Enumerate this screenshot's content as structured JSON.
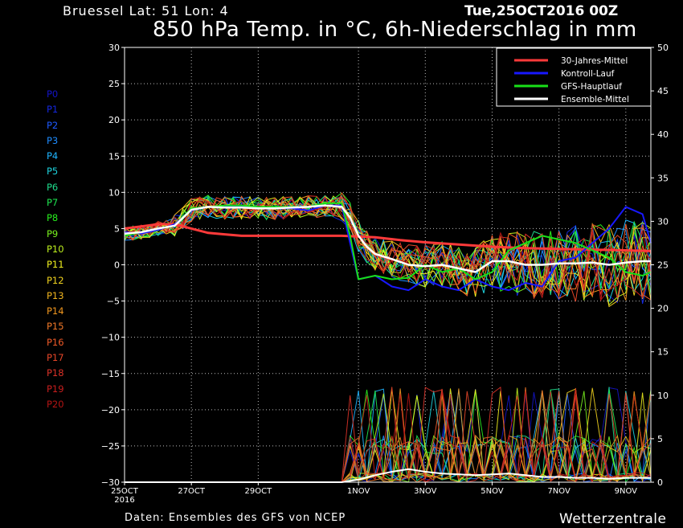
{
  "header": {
    "location": "Bruessel   Lat: 51 Lon: 4",
    "run": "Tue,25OCT2016 00Z",
    "title": "850 hPa Temp. in °C, 6h-Niederschlag in mm"
  },
  "footer": {
    "source": "Daten: Ensembles des GFS von NCEP",
    "credit": "Wetterzentrale"
  },
  "colors": {
    "climate": "#ff3a3a",
    "control": "#1818ff",
    "main": "#18e018",
    "mean": "#ffffff",
    "frame": "#ffffff",
    "grid": "#bbbbbb"
  },
  "legend": [
    {
      "label": "30-Jahres-Mittel",
      "color": "#ff3a3a"
    },
    {
      "label": "Kontroll-Lauf",
      "color": "#1818ff"
    },
    {
      "label": "GFS-Hauptlauf",
      "color": "#18e018"
    },
    {
      "label": "Ensemble-Mittel",
      "color": "#ffffff"
    }
  ],
  "members": [
    {
      "label": "P0",
      "color": "#1414c8"
    },
    {
      "label": "P1",
      "color": "#1428e0"
    },
    {
      "label": "P2",
      "color": "#1e5aff"
    },
    {
      "label": "P3",
      "color": "#1e8cff"
    },
    {
      "label": "P4",
      "color": "#1eb4ff"
    },
    {
      "label": "P5",
      "color": "#1ed2dc"
    },
    {
      "label": "P6",
      "color": "#1edc8c"
    },
    {
      "label": "P7",
      "color": "#1ee650"
    },
    {
      "label": "P8",
      "color": "#28f01e"
    },
    {
      "label": "P9",
      "color": "#78f01e"
    },
    {
      "label": "P10",
      "color": "#bef01e"
    },
    {
      "label": "P11",
      "color": "#f0f01e"
    },
    {
      "label": "P12",
      "color": "#f0d21e"
    },
    {
      "label": "P13",
      "color": "#f0b41e"
    },
    {
      "label": "P14",
      "color": "#f0961e"
    },
    {
      "label": "P15",
      "color": "#f07828"
    },
    {
      "label": "P16",
      "color": "#f05a28"
    },
    {
      "label": "P17",
      "color": "#e64628"
    },
    {
      "label": "P18",
      "color": "#dc3228"
    },
    {
      "label": "P19",
      "color": "#c81e1e"
    },
    {
      "label": "P20",
      "color": "#b41414"
    }
  ],
  "chart_data": {
    "type": "line",
    "title": "850 hPa Temp. in °C, 6h-Niederschlag in mm",
    "x_unit": "forecast step, 6 h (0 = 25OCT 00Z)",
    "xlim": [
      0,
      63
    ],
    "x_ticks": [
      {
        "x": 0,
        "label": "25OCT",
        "sublabel": "2016"
      },
      {
        "x": 8,
        "label": "27OCT",
        "sublabel": ""
      },
      {
        "x": 16,
        "label": "29OCT",
        "sublabel": ""
      },
      {
        "x": 28,
        "label": "1NOV",
        "sublabel": ""
      },
      {
        "x": 36,
        "label": "3NOV",
        "sublabel": ""
      },
      {
        "x": 44,
        "label": "5NOV",
        "sublabel": ""
      },
      {
        "x": 52,
        "label": "7NOV",
        "sublabel": ""
      },
      {
        "x": 60,
        "label": "9NOV",
        "sublabel": ""
      }
    ],
    "y_left": {
      "label": "",
      "lim": [
        -30,
        30
      ],
      "ticks": [
        30,
        25,
        20,
        15,
        10,
        5,
        0,
        -5,
        -10,
        -15,
        -20,
        -25,
        -30
      ]
    },
    "y_right": {
      "label": "",
      "lim": [
        0,
        50
      ],
      "ticks": [
        50,
        45,
        40,
        35,
        30,
        25,
        20,
        15,
        10,
        5,
        0
      ]
    },
    "grid": true,
    "legend_position": "top-right",
    "series": [
      {
        "name": "30-Jahres-Mittel",
        "color": "#ff3a3a",
        "width": 3,
        "axis": "left",
        "style": "dashed",
        "points": [
          [
            0,
            5
          ],
          [
            2,
            5.3
          ],
          [
            4,
            5.6
          ],
          [
            6,
            5.6
          ],
          [
            8,
            5
          ],
          [
            10,
            4.4
          ],
          [
            12,
            4.2
          ],
          [
            14,
            4
          ],
          [
            18,
            4
          ],
          [
            22,
            4
          ],
          [
            26,
            4
          ],
          [
            30,
            3.8
          ],
          [
            33,
            3.4
          ],
          [
            36,
            3.1
          ],
          [
            40,
            2.8
          ],
          [
            44,
            2.5
          ],
          [
            48,
            2.3
          ],
          [
            52,
            2.2
          ],
          [
            56,
            2.1
          ],
          [
            60,
            2
          ],
          [
            63,
            1.9
          ]
        ]
      },
      {
        "name": "Kontroll-Lauf",
        "color": "#1818ff",
        "width": 2,
        "axis": "left",
        "points": [
          [
            0,
            4.5
          ],
          [
            2,
            4.3
          ],
          [
            4,
            4.8
          ],
          [
            6,
            5.6
          ],
          [
            8,
            7.5
          ],
          [
            10,
            8
          ],
          [
            12,
            8
          ],
          [
            14,
            8
          ],
          [
            16,
            8
          ],
          [
            18,
            7.8
          ],
          [
            20,
            7.8
          ],
          [
            22,
            7.5
          ],
          [
            24,
            8.2
          ],
          [
            26,
            8.2
          ],
          [
            27,
            3
          ],
          [
            28,
            -2
          ],
          [
            30,
            -1.5
          ],
          [
            32,
            -3
          ],
          [
            34,
            -3.5
          ],
          [
            36,
            -2
          ],
          [
            38,
            -3
          ],
          [
            40,
            -3.5
          ],
          [
            42,
            -2
          ],
          [
            44,
            -3
          ],
          [
            46,
            -3.5
          ],
          [
            48,
            -2.5
          ],
          [
            50,
            -3
          ],
          [
            52,
            0.5
          ],
          [
            54,
            1
          ],
          [
            56,
            3
          ],
          [
            58,
            5
          ],
          [
            60,
            8
          ],
          [
            62,
            7
          ],
          [
            63,
            3
          ]
        ]
      },
      {
        "name": "GFS-Hauptlauf",
        "color": "#18e018",
        "width": 2,
        "axis": "left",
        "points": [
          [
            0,
            4
          ],
          [
            2,
            4.5
          ],
          [
            4,
            5
          ],
          [
            6,
            5.4
          ],
          [
            8,
            7.8
          ],
          [
            10,
            8
          ],
          [
            12,
            8.2
          ],
          [
            14,
            8.2
          ],
          [
            16,
            8
          ],
          [
            18,
            8
          ],
          [
            20,
            8
          ],
          [
            22,
            8
          ],
          [
            24,
            8.5
          ],
          [
            26,
            8.5
          ],
          [
            27,
            4
          ],
          [
            28,
            -2
          ],
          [
            30,
            -1.5
          ],
          [
            32,
            -2
          ],
          [
            34,
            -1.8
          ],
          [
            36,
            0
          ],
          [
            38,
            -1
          ],
          [
            40,
            -0.5
          ],
          [
            42,
            -2
          ],
          [
            44,
            -1
          ],
          [
            46,
            2
          ],
          [
            48,
            3
          ],
          [
            50,
            4
          ],
          [
            52,
            3.5
          ],
          [
            54,
            3
          ],
          [
            56,
            2
          ],
          [
            58,
            1
          ],
          [
            60,
            -1
          ],
          [
            62,
            -1.5
          ],
          [
            63,
            -1
          ]
        ]
      },
      {
        "name": "Ensemble-Mittel",
        "color": "#ffffff",
        "width": 2.5,
        "axis": "left",
        "points": [
          [
            0,
            4.3
          ],
          [
            2,
            4.5
          ],
          [
            4,
            5
          ],
          [
            6,
            5.4
          ],
          [
            8,
            7.6
          ],
          [
            10,
            8
          ],
          [
            12,
            7.9
          ],
          [
            14,
            7.9
          ],
          [
            16,
            7.8
          ],
          [
            18,
            7.8
          ],
          [
            20,
            7.9
          ],
          [
            22,
            8
          ],
          [
            24,
            8.2
          ],
          [
            26,
            8
          ],
          [
            27,
            6.5
          ],
          [
            28,
            4
          ],
          [
            29,
            2.5
          ],
          [
            30,
            1.5
          ],
          [
            32,
            0.8
          ],
          [
            34,
            0
          ],
          [
            36,
            -0.2
          ],
          [
            38,
            0
          ],
          [
            40,
            -0.5
          ],
          [
            42,
            -1
          ],
          [
            44,
            0.5
          ],
          [
            46,
            0.5
          ],
          [
            48,
            0
          ],
          [
            50,
            0
          ],
          [
            52,
            0.2
          ],
          [
            54,
            0.2
          ],
          [
            56,
            0.3
          ],
          [
            58,
            0
          ],
          [
            60,
            0.3
          ],
          [
            62,
            0.5
          ],
          [
            63,
            0.5
          ]
        ]
      },
      {
        "name": "Ensemble-Mittel Niederschlag",
        "color": "#ffffff",
        "width": 2,
        "axis": "right",
        "points": [
          [
            0,
            0
          ],
          [
            26,
            0
          ],
          [
            28,
            0.3
          ],
          [
            30,
            0.8
          ],
          [
            32,
            1.2
          ],
          [
            34,
            1.5
          ],
          [
            36,
            1.2
          ],
          [
            38,
            1
          ],
          [
            40,
            0.9
          ],
          [
            42,
            0.8
          ],
          [
            44,
            0.9
          ],
          [
            46,
            1
          ],
          [
            48,
            0.8
          ],
          [
            50,
            0.6
          ],
          [
            52,
            0.6
          ],
          [
            54,
            0.5
          ],
          [
            56,
            0.5
          ],
          [
            58,
            0.4
          ],
          [
            60,
            0.5
          ],
          [
            62,
            0.5
          ],
          [
            63,
            0.5
          ]
        ]
      }
    ]
  }
}
